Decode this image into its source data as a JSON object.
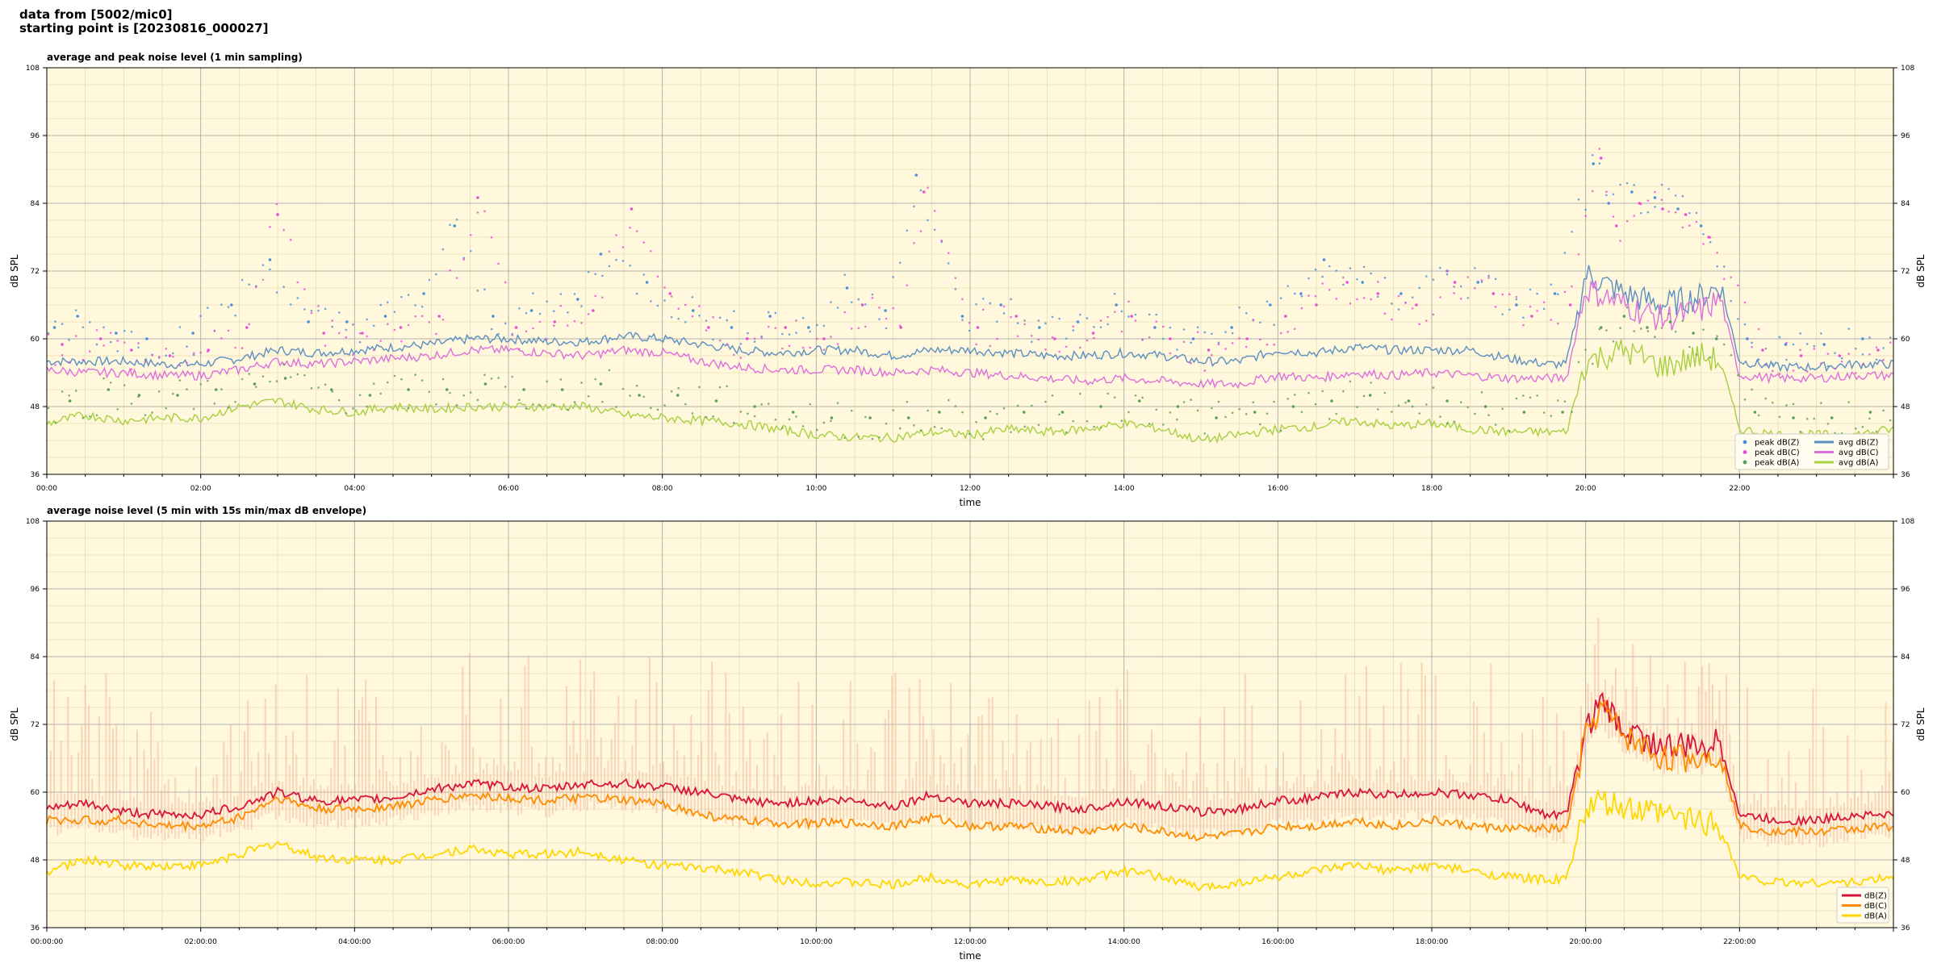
{
  "header": {
    "line1": "data from [5002/mic0]",
    "line2": "starting point is [20230816_000027]"
  },
  "colors": {
    "background": "#fff8dc",
    "grid_major": "#b0b0b0",
    "grid_minor": "#e6dcb4",
    "peak_z": "#4a90d9",
    "peak_c": "#e64fd6",
    "peak_a": "#5a9e5a",
    "avg_z": "#5b8fc2",
    "avg_c": "#dd6fdd",
    "avg_a": "#a8d040",
    "dbz": "#d8143c",
    "dbc": "#ff8c00",
    "dba": "#ffd700",
    "envelope": "#f4b8a0"
  },
  "chart_data": [
    {
      "type": "line",
      "title": "average and peak noise level (1 min sampling)",
      "xlabel": "time",
      "ylabel": "dB SPL",
      "ylabel_right": "dB SPL",
      "xlim_hours": [
        0,
        24
      ],
      "ylim": [
        36,
        108
      ],
      "yticks": [
        36,
        48,
        60,
        72,
        84,
        96,
        108
      ],
      "xtick_labels": [
        "00:00",
        "02:00",
        "04:00",
        "06:00",
        "08:00",
        "10:00",
        "12:00",
        "14:00",
        "16:00",
        "18:00",
        "20:00",
        "22:00"
      ],
      "grid": true,
      "legend_position": "lower-right",
      "legend": {
        "col1": [
          "peak dB(Z)",
          "peak dB(C)",
          "peak dB(A)"
        ],
        "col2": [
          "avg dB(Z)",
          "avg dB(C)",
          "avg dB(A)"
        ]
      },
      "series": [
        {
          "name": "avg dB(Z)",
          "x": [
            0,
            0.5,
            1,
            1.5,
            2,
            2.5,
            3,
            3.5,
            4,
            4.5,
            5,
            5.5,
            6,
            6.5,
            7,
            7.5,
            8,
            8.5,
            9,
            9.5,
            10,
            10.5,
            11,
            11.5,
            12,
            12.5,
            13,
            13.5,
            14,
            14.5,
            15,
            15.5,
            16,
            16.5,
            17,
            17.5,
            18,
            18.5,
            19,
            19.5,
            19.75,
            20,
            20.5,
            21,
            21.5,
            21.75,
            22,
            22.5,
            23,
            23.5,
            24
          ],
          "y": [
            56,
            56,
            56,
            55.5,
            55.5,
            56.5,
            58,
            57.5,
            58,
            58.5,
            59,
            60,
            60,
            59.5,
            59.5,
            60.5,
            60,
            59,
            58,
            57.5,
            58,
            58,
            57,
            58,
            58,
            57.5,
            57,
            57,
            57.5,
            57,
            56,
            56,
            58,
            57.5,
            58.5,
            58,
            58,
            58,
            56.5,
            55.5,
            55.5,
            71.5,
            68,
            66,
            67.5,
            69.5,
            56,
            55,
            55,
            55.5,
            55.5
          ]
        },
        {
          "name": "avg dB(C)",
          "x": [
            0,
            0.5,
            1,
            1.5,
            2,
            2.5,
            3,
            3.5,
            4,
            4.5,
            5,
            5.5,
            6,
            6.5,
            7,
            7.5,
            8,
            8.5,
            9,
            9.5,
            10,
            10.5,
            11,
            11.5,
            12,
            12.5,
            13,
            13.5,
            14,
            14.5,
            15,
            15.5,
            16,
            16.5,
            17,
            17.5,
            18,
            18.5,
            19,
            19.5,
            19.75,
            20,
            20.5,
            21,
            21.5,
            21.75,
            22,
            22.5,
            23,
            23.5,
            24
          ],
          "y": [
            54.5,
            54,
            54,
            53.5,
            53.5,
            54.5,
            56,
            55.5,
            56,
            56.5,
            57,
            58,
            58,
            57.5,
            57,
            58,
            57.5,
            56,
            55,
            54.5,
            54.5,
            54.5,
            54,
            54.5,
            54,
            53.5,
            53,
            52.5,
            53,
            52.5,
            52,
            52,
            53.5,
            53,
            54,
            53.5,
            54,
            53.5,
            53,
            53,
            53,
            69,
            66,
            63.5,
            65,
            67,
            53.5,
            53,
            53,
            53.5,
            53.5
          ]
        },
        {
          "name": "avg dB(A)",
          "x": [
            0,
            0.5,
            1,
            1.5,
            2,
            2.5,
            3,
            3.5,
            4,
            4.5,
            5,
            5.5,
            6,
            6.5,
            7,
            7.5,
            8,
            8.5,
            9,
            9.5,
            10,
            10.5,
            11,
            11.5,
            12,
            12.5,
            13,
            13.5,
            14,
            14.5,
            15,
            15.5,
            16,
            16.5,
            17,
            17.5,
            18,
            18.5,
            19,
            19.5,
            19.75,
            20,
            20.5,
            21,
            21.5,
            21.75,
            22,
            22.5,
            23,
            23.5,
            24
          ],
          "y": [
            45,
            46.5,
            45.5,
            46,
            46,
            48,
            49,
            47.5,
            47,
            48,
            47.5,
            48,
            48,
            48,
            48,
            46.5,
            46,
            45.5,
            45,
            44,
            43,
            42.5,
            42.5,
            43.5,
            43,
            44,
            43.5,
            44,
            45,
            44,
            42,
            43,
            44,
            44.5,
            45.5,
            44.5,
            45,
            44,
            43.5,
            43.5,
            43.5,
            56,
            58,
            55,
            57,
            56,
            44,
            43,
            43,
            43,
            44
          ]
        },
        {
          "name": "peak dB(Z)",
          "x": [
            0.1,
            0.4,
            0.9,
            1.3,
            1.9,
            2.4,
            2.9,
            3.4,
            3.9,
            4.4,
            4.9,
            5.3,
            5.8,
            6.3,
            6.9,
            7.2,
            7.8,
            8.4,
            8.9,
            9.4,
            9.9,
            10.4,
            10.9,
            11.3,
            11.9,
            12.4,
            12.9,
            13.4,
            13.9,
            14.4,
            14.9,
            15.4,
            15.9,
            16.3,
            16.6,
            17.1,
            17.6,
            18.2,
            18.6,
            19.1,
            19.6,
            20.1,
            20.3,
            20.6,
            20.9,
            21.2,
            21.5,
            22.1,
            22.6,
            23.1,
            23.6
          ],
          "y": [
            62,
            64,
            61,
            60,
            61,
            66,
            74,
            63,
            63,
            64,
            68,
            80,
            64,
            65,
            67,
            75,
            70,
            65,
            62,
            64,
            62,
            69,
            65,
            89,
            64,
            66,
            62,
            63,
            66,
            62,
            60,
            62,
            66,
            68,
            74,
            70,
            68,
            72,
            70,
            66,
            68,
            91,
            84,
            86,
            85,
            83,
            80,
            60,
            59,
            59,
            60
          ]
        },
        {
          "name": "peak dB(C)",
          "x": [
            0.2,
            0.7,
            1.1,
            1.6,
            2.1,
            2.6,
            3.0,
            3.6,
            4.1,
            4.6,
            5.1,
            5.6,
            6.1,
            6.6,
            7.1,
            7.6,
            8.1,
            8.6,
            9.1,
            9.6,
            10.1,
            10.6,
            11.1,
            11.4,
            12.1,
            12.6,
            13.1,
            13.6,
            14.1,
            14.6,
            15.1,
            15.6,
            16.1,
            16.5,
            16.9,
            17.3,
            17.8,
            18.3,
            18.8,
            19.3,
            19.8,
            20.2,
            20.4,
            20.7,
            21.0,
            21.3,
            21.6,
            22.3,
            22.8,
            23.3,
            23.8
          ],
          "y": [
            59,
            60,
            58,
            57,
            58,
            62,
            82,
            61,
            61,
            62,
            64,
            85,
            62,
            63,
            65,
            83,
            68,
            62,
            60,
            62,
            60,
            66,
            62,
            86,
            62,
            64,
            60,
            61,
            64,
            60,
            58,
            60,
            64,
            66,
            70,
            68,
            66,
            70,
            68,
            64,
            66,
            92,
            80,
            84,
            83,
            82,
            78,
            58,
            57,
            57,
            58
          ]
        },
        {
          "name": "peak dB(A)",
          "x": [
            0.3,
            0.8,
            1.2,
            1.7,
            2.2,
            2.7,
            3.1,
            3.7,
            4.2,
            4.7,
            5.2,
            5.7,
            6.2,
            6.7,
            7.2,
            7.7,
            8.2,
            8.7,
            9.2,
            9.7,
            10.2,
            10.7,
            11.2,
            11.6,
            12.2,
            12.7,
            13.2,
            13.7,
            14.2,
            14.7,
            15.2,
            15.7,
            16.2,
            16.7,
            17.2,
            17.7,
            18.2,
            18.7,
            19.2,
            19.7,
            20.2,
            20.5,
            20.8,
            21.1,
            21.4,
            21.7,
            22.2,
            22.7,
            23.2,
            23.7
          ],
          "y": [
            49,
            51,
            50,
            50,
            51,
            52,
            53,
            51,
            50,
            51,
            51,
            52,
            51,
            51,
            52,
            50,
            50,
            49,
            48,
            47,
            46,
            46,
            46,
            47,
            46,
            47,
            47,
            48,
            49,
            48,
            46,
            47,
            48,
            49,
            50,
            49,
            49,
            48,
            47,
            47,
            62,
            64,
            62,
            63,
            61,
            60,
            47,
            46,
            46,
            47
          ]
        }
      ]
    },
    {
      "type": "line",
      "title": "average noise level (5 min with 15s min/max dB envelope)",
      "xlabel": "time",
      "ylabel": "dB SPL",
      "ylabel_right": "dB SPL",
      "xlim_hours": [
        0,
        24
      ],
      "ylim": [
        36,
        108
      ],
      "yticks": [
        36,
        48,
        60,
        72,
        84,
        96,
        108
      ],
      "xtick_labels": [
        "00:00:00",
        "02:00:00",
        "04:00:00",
        "06:00:00",
        "08:00:00",
        "10:00:00",
        "12:00:00",
        "14:00:00",
        "16:00:00",
        "18:00:00",
        "20:00:00",
        "22:00:00"
      ],
      "grid": true,
      "legend_position": "lower-right",
      "legend": [
        "dB(Z)",
        "dB(C)",
        "dB(A)"
      ],
      "series": [
        {
          "name": "dB(Z)",
          "x": [
            0,
            0.5,
            1,
            1.5,
            2,
            2.5,
            3,
            3.5,
            4,
            4.5,
            5,
            5.5,
            6,
            6.5,
            7,
            7.5,
            8,
            8.5,
            9,
            9.5,
            10,
            10.5,
            11,
            11.5,
            12,
            12.5,
            13,
            13.5,
            14,
            14.5,
            15,
            15.5,
            16,
            16.5,
            17,
            17.5,
            18,
            18.5,
            19,
            19.5,
            19.75,
            20,
            20.2,
            20.5,
            21,
            21.5,
            21.75,
            22,
            22.5,
            23,
            23.5,
            24
          ],
          "y": [
            57,
            58,
            56.5,
            56,
            56,
            57.5,
            60,
            58.5,
            58.5,
            59,
            60.5,
            61.5,
            61,
            60.5,
            61.5,
            61.5,
            61,
            60,
            58.5,
            58,
            58.5,
            58.5,
            57.5,
            59.5,
            58,
            58,
            57.5,
            57,
            58.5,
            57.5,
            56.5,
            57,
            58.5,
            59,
            60,
            59.5,
            60,
            59.5,
            58.5,
            56,
            56,
            71,
            76,
            71,
            68,
            68,
            69,
            56,
            55,
            55,
            56,
            56
          ]
        },
        {
          "name": "dB(C)",
          "x": [
            0,
            0.5,
            1,
            1.5,
            2,
            2.5,
            3,
            3.5,
            4,
            4.5,
            5,
            5.5,
            6,
            6.5,
            7,
            7.5,
            8,
            8.5,
            9,
            9.5,
            10,
            10.5,
            11,
            11.5,
            12,
            12.5,
            13,
            13.5,
            14,
            14.5,
            15,
            15.5,
            16,
            16.5,
            17,
            17.5,
            18,
            18.5,
            19,
            19.5,
            19.75,
            20,
            20.2,
            20.5,
            21,
            21.5,
            21.75,
            22,
            22.5,
            23,
            23.5,
            24
          ],
          "y": [
            55,
            55,
            55,
            54,
            54,
            55.5,
            59,
            57,
            57,
            57.5,
            58.5,
            59.5,
            59,
            58.5,
            59,
            58.5,
            58,
            56,
            55,
            54.5,
            54.5,
            54.5,
            54,
            55.5,
            54,
            54,
            53.5,
            53,
            54,
            53,
            52,
            52.5,
            54,
            54,
            55,
            54,
            55,
            54,
            53.5,
            53.5,
            53.5,
            70,
            75,
            70,
            66,
            66,
            67,
            54,
            53,
            53,
            53.5,
            54
          ]
        },
        {
          "name": "dB(A)",
          "x": [
            0,
            0.5,
            1,
            1.5,
            2,
            2.5,
            3,
            3.5,
            4,
            4.5,
            5,
            5.5,
            6,
            6.5,
            7,
            7.5,
            8,
            8.5,
            9,
            9.5,
            10,
            10.5,
            11,
            11.5,
            12,
            12.5,
            13,
            13.5,
            14,
            14.5,
            15,
            15.5,
            16,
            16.5,
            17,
            17.5,
            18,
            18.5,
            19,
            19.5,
            19.75,
            20,
            20.2,
            20.5,
            21,
            21.5,
            21.75,
            22,
            22.5,
            23,
            23.5,
            24
          ],
          "y": [
            46,
            48,
            47,
            47,
            47,
            49,
            51,
            48.5,
            48,
            48,
            49,
            50,
            49,
            49,
            49.5,
            48,
            47,
            46.5,
            46,
            44.5,
            44,
            44,
            43.5,
            45,
            43.5,
            44.5,
            44,
            44.5,
            46,
            45,
            43,
            44,
            45,
            46,
            47,
            46,
            47,
            46,
            45,
            44.5,
            44.5,
            57,
            58,
            57,
            56,
            55,
            54,
            45,
            44,
            44,
            44,
            45
          ]
        }
      ]
    }
  ]
}
